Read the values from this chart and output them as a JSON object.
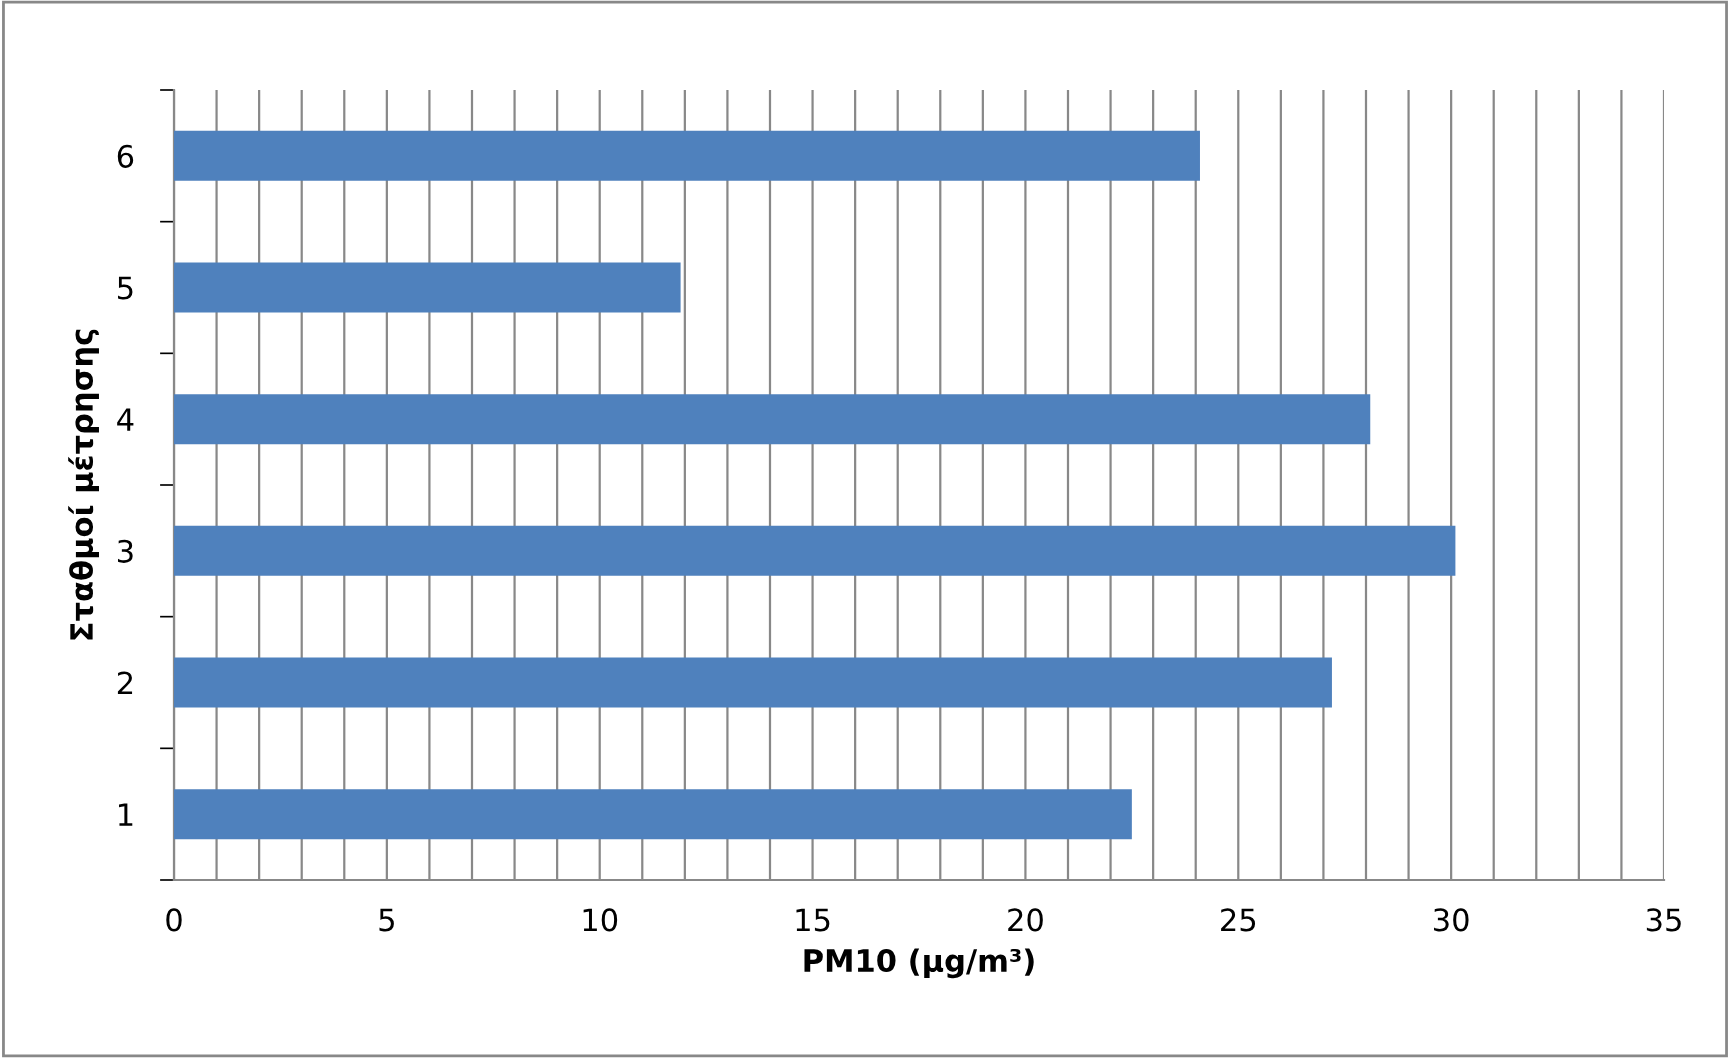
{
  "chart_data": {
    "type": "bar",
    "orientation": "horizontal",
    "categories": [
      "6",
      "5",
      "4",
      "3",
      "2",
      "1"
    ],
    "values": [
      24.1,
      11.9,
      28.1,
      30.1,
      27.2,
      22.5
    ],
    "color": "#4f81bd",
    "xlabel": "PM10 (μg/m³)",
    "ylabel": "Σταθμοί μέτρησης",
    "xlim": [
      0,
      35
    ],
    "xticks": [
      0,
      {
        "value": 1,
        "label": null
      },
      {
        "value": 2,
        "label": null
      },
      {
        "value": 3,
        "label": null
      },
      {
        "value": 4,
        "label": null
      },
      5,
      {
        "value": 6,
        "label": null
      },
      {
        "value": 7,
        "label": null
      },
      {
        "value": 8,
        "label": null
      },
      {
        "value": 9,
        "label": null
      },
      10,
      {
        "value": 11,
        "label": null
      },
      {
        "value": 12,
        "label": null
      },
      {
        "value": 13,
        "label": null
      },
      {
        "value": 14,
        "label": null
      },
      15,
      {
        "value": 16,
        "label": null
      },
      {
        "value": 17,
        "label": null
      },
      {
        "value": 18,
        "label": null
      },
      {
        "value": 19,
        "label": null
      },
      20,
      {
        "value": 21,
        "label": null
      },
      {
        "value": 22,
        "label": null
      },
      {
        "value": 23,
        "label": null
      },
      {
        "value": 24,
        "label": null
      },
      25,
      {
        "value": 26,
        "label": null
      },
      {
        "value": 27,
        "label": null
      },
      {
        "value": 28,
        "label": null
      },
      {
        "value": 29,
        "label": null
      },
      30,
      {
        "value": 31,
        "label": null
      },
      {
        "value": 32,
        "label": null
      },
      {
        "value": 33,
        "label": null
      },
      {
        "value": 34,
        "label": null
      },
      35
    ],
    "grid": "x",
    "legend": false
  }
}
